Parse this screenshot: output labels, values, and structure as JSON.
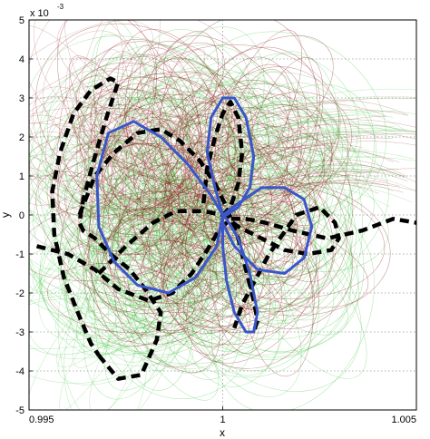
{
  "chart_data": {
    "type": "line",
    "title": "",
    "xlabel": "x",
    "ylabel": "y",
    "xlim": [
      0.995,
      1.005
    ],
    "ylim": [
      -5,
      5
    ],
    "y_exponent_label": "x 10",
    "y_exponent_power": "-3",
    "grid": true,
    "grid_style": "dotted",
    "x_ticks": [
      0.995,
      1,
      1.005
    ],
    "x_tick_labels": [
      "0.995",
      "1",
      "1.005"
    ],
    "y_ticks": [
      -5,
      -4,
      -3,
      -2,
      -1,
      0,
      1,
      2,
      3,
      4,
      5
    ],
    "y_tick_labels": [
      "-5",
      "-4",
      "-3",
      "-2",
      "-1",
      "0",
      "1",
      "2",
      "3",
      "4",
      "5"
    ],
    "colors": {
      "red_trajectories": "#8b1a1a",
      "green_trajectories": "#3cc43c",
      "blue_orbit": "#3a56c8",
      "dashed_boundary": "#000000",
      "grid": "#9a9a9a"
    },
    "series": [
      {
        "style": "black-dashed",
        "x": [
          0.9968,
          0.9973,
          0.9979,
          0.9983,
          0.9984,
          0.998,
          0.9976,
          0.9971,
          0.9967,
          0.9964,
          0.9963,
          0.9964,
          0.9967,
          0.997,
          0.9972,
          0.9973,
          0.9971,
          0.9966,
          0.99615,
          0.9958,
          0.9956,
          0.99565,
          0.9959,
          0.9963,
          0.9966,
          0.9968
        ],
        "y": [
          -3.6,
          -4.2,
          -4.1,
          -3.2,
          -2.5,
          -1.9,
          -1.4,
          -1.0,
          -0.6,
          -0.4,
          -0.2,
          0.4,
          1.5,
          2.5,
          3.1,
          3.4,
          3.5,
          3.2,
          2.6,
          1.6,
          0.6,
          -0.5,
          -1.6,
          -2.6,
          -3.3,
          -3.6
        ]
      },
      {
        "style": "black-dashed",
        "x": [
          0.9952,
          0.996,
          0.9967,
          0.9973,
          0.9981,
          0.9987,
          0.9992,
          0.9996,
          0.9999,
          1.0002,
          1.0006,
          1.0011,
          1.0018,
          1.0027,
          1.0036,
          1.0044,
          1.005
        ],
        "y": [
          -0.8,
          -1.0,
          -1.4,
          -1.9,
          -2.2,
          -2.0,
          -1.5,
          -0.9,
          -0.4,
          -0.1,
          -0.1,
          -0.2,
          -0.4,
          -0.6,
          -0.4,
          -0.1,
          -0.2
        ]
      },
      {
        "style": "black-dashed",
        "x": [
          0.9968,
          0.9975,
          0.9982,
          0.9988,
          0.9995,
          1.0,
          1.0004,
          1.001,
          1.0016,
          1.0022,
          1.0028,
          1.003,
          1.0029,
          1.0025,
          1.0019,
          1.0012,
          1.0005,
          1.0003
        ],
        "y": [
          -1.5,
          -0.8,
          -0.2,
          0.1,
          0.1,
          0.0,
          -0.3,
          -0.6,
          -0.9,
          -1.0,
          -0.9,
          -0.6,
          -0.2,
          0.2,
          0.0,
          -1.0,
          -2.3,
          -2.9
        ]
      },
      {
        "style": "black-dashed",
        "x": [
          0.9963,
          0.9967,
          0.9972,
          0.9978,
          0.9984,
          0.9989,
          0.9994,
          0.9998,
          1.0001,
          1.0004,
          1.0006,
          1.0008,
          1.0009,
          1.0008
        ],
        "y": [
          0.0,
          1.0,
          1.6,
          2.1,
          2.2,
          1.9,
          1.4,
          0.8,
          0.2,
          -0.6,
          -1.4,
          -2.2,
          -2.7,
          -3.0
        ]
      },
      {
        "style": "black-dashed",
        "x": [
          0.9995,
          0.9996,
          0.9998,
          1.0,
          1.0002,
          1.0004,
          1.0005,
          1.0004,
          1.0002,
          1.0
        ],
        "y": [
          0.3,
          1.2,
          2.0,
          2.6,
          2.9,
          2.5,
          1.6,
          0.8,
          0.2,
          0.0
        ]
      },
      {
        "style": "blue-solid",
        "x": [
          1.0,
          0.9997,
          0.9991,
          0.9984,
          0.9977,
          0.99705,
          0.99675,
          0.9968,
          0.9972,
          0.9978,
          0.9986,
          0.9993,
          0.99985,
          1.0,
          0.9998,
          0.9996,
          0.9997,
          1.0,
          1.0003,
          1.0006,
          1.0008,
          1.0007,
          1.0004,
          1.0001,
          1.0,
          1.0004,
          1.001,
          1.0016,
          1.0021,
          1.0023,
          1.0021,
          1.0016,
          1.0009,
          1.0003,
          1.0,
          1.0,
          1.0,
          1.0001,
          1.0003,
          1.0006,
          1.0008,
          1.0009,
          1.0007,
          1.0004,
          1.0001,
          1.0
        ],
        "y": [
          0.0,
          0.5,
          1.3,
          2.0,
          2.4,
          2.1,
          1.0,
          -0.3,
          -1.2,
          -1.8,
          -2.0,
          -1.6,
          -0.8,
          0.0,
          0.7,
          1.6,
          2.5,
          3.0,
          3.0,
          2.5,
          1.5,
          0.7,
          0.2,
          0.0,
          0.0,
          0.3,
          0.7,
          0.7,
          0.4,
          -0.3,
          -1.1,
          -1.5,
          -1.4,
          -0.8,
          -0.2,
          0.0,
          -0.8,
          -1.7,
          -2.5,
          -3.0,
          -3.0,
          -2.5,
          -1.5,
          -0.6,
          -0.1,
          0.0
        ]
      }
    ]
  }
}
